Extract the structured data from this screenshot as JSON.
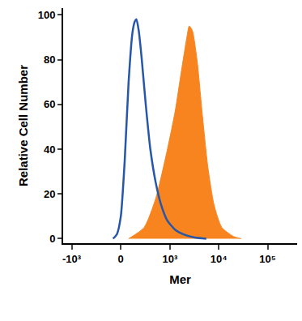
{
  "chart_data": {
    "type": "histogram",
    "xlabel": "Mer",
    "ylabel": "Relative Cell Number",
    "xlim": [
      -1500,
      400000
    ],
    "xticks": [
      {
        "value": -1000,
        "label": "-10³"
      },
      0,
      {
        "value": 1000,
        "label": "10³"
      },
      {
        "value": 10000,
        "label": "10⁴"
      },
      {
        "value": 100000,
        "label": "10⁵"
      }
    ],
    "ylim": [
      -2,
      103
    ],
    "yticks": [
      0,
      20,
      40,
      60,
      80,
      100
    ],
    "grid": false,
    "series": [
      {
        "type": "area",
        "color": "#f7841f",
        "x": [
          75,
          266,
          498,
          886,
          1284,
          1727,
          2232,
          2493,
          2885,
          3594,
          4640,
          5998,
          8036,
          11580,
          20000,
          28800
        ],
        "values": [
          0,
          5,
          18,
          40,
          57,
          75,
          90,
          95,
          93,
          80,
          55,
          32,
          15,
          5,
          1,
          0
        ]
      },
      {
        "type": "line",
        "color": "#2757a8",
        "x": [
          -75,
          -37,
          0,
          37,
          75,
          115,
          141,
          160,
          189,
          231,
          292,
          376,
          498,
          654,
          886,
          1284,
          1856,
          3223,
          5570
        ],
        "values": [
          0,
          2,
          10,
          35,
          70,
          92,
          97,
          98,
          93,
          80,
          60,
          40,
          25,
          15,
          8,
          4,
          2,
          0.5,
          0
        ]
      }
    ]
  }
}
